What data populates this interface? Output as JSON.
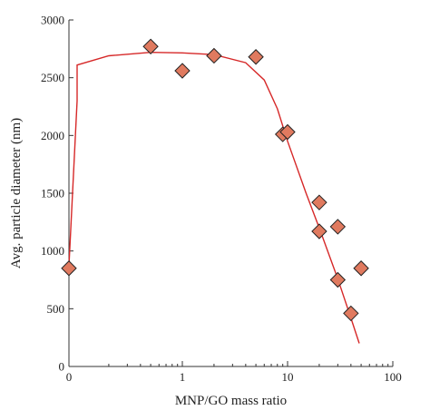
{
  "chart_data": {
    "type": "scatter",
    "title": "",
    "xlabel": "MNP/GO mass ratio",
    "ylabel": "Avg. particle diameter (nm)",
    "x_scale": "log with zero point",
    "xlim": [
      0,
      100
    ],
    "ylim": [
      0,
      3000
    ],
    "x_major_ticks": [
      0,
      1,
      10,
      100
    ],
    "x_tick_labels": [
      "0",
      "1",
      "10",
      "100"
    ],
    "y_ticks": [
      0,
      500,
      1000,
      1500,
      2000,
      2500,
      3000
    ],
    "y_tick_labels": [
      "0",
      "500",
      "1000",
      "1500",
      "2000",
      "2500",
      "3000"
    ],
    "grid": false,
    "legend": "none",
    "marker_color": "#e07a5f",
    "curve_color": "#d62828",
    "series": [
      {
        "type": "scatter",
        "points": [
          {
            "x": 0,
            "y": 850
          },
          {
            "x": 0.5,
            "y": 2770
          },
          {
            "x": 1,
            "y": 2560
          },
          {
            "x": 2,
            "y": 2690
          },
          {
            "x": 5,
            "y": 2680
          },
          {
            "x": 9,
            "y": 2010
          },
          {
            "x": 10,
            "y": 2030
          },
          {
            "x": 20,
            "y": 1420
          },
          {
            "x": 20,
            "y": 1170
          },
          {
            "x": 30,
            "y": 1210
          },
          {
            "x": 30,
            "y": 750
          },
          {
            "x": 40,
            "y": 460
          },
          {
            "x": 50,
            "y": 850
          }
        ]
      },
      {
        "type": "line",
        "points": [
          {
            "x": 0,
            "y": 870
          },
          {
            "x": 0.02,
            "y": 2300
          },
          {
            "x": 0.08,
            "y": 2610
          },
          {
            "x": 0.2,
            "y": 2690
          },
          {
            "x": 0.5,
            "y": 2720
          },
          {
            "x": 1,
            "y": 2715
          },
          {
            "x": 2,
            "y": 2700
          },
          {
            "x": 4,
            "y": 2630
          },
          {
            "x": 6,
            "y": 2480
          },
          {
            "x": 8,
            "y": 2230
          },
          {
            "x": 10,
            "y": 1950
          },
          {
            "x": 15,
            "y": 1500
          },
          {
            "x": 20,
            "y": 1200
          },
          {
            "x": 30,
            "y": 760
          },
          {
            "x": 40,
            "y": 420
          },
          {
            "x": 48,
            "y": 200
          }
        ]
      }
    ]
  }
}
